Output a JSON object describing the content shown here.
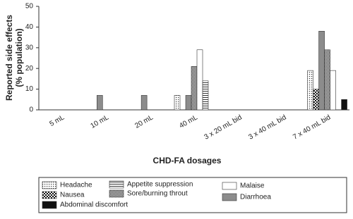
{
  "chart_data": {
    "type": "bar",
    "ylabel": [
      "Reported side effects",
      "(% population)"
    ],
    "xlabel": "CHD-FA dosages",
    "categories": [
      "5 mL",
      "10 mL",
      "20 mL",
      "40 mL",
      "3 x 20 mL bid",
      "3 x 40 mL bid",
      "7 x 40 mL bid"
    ],
    "series": [
      {
        "name": "Headache",
        "color": "#ffffff",
        "pattern": "dots",
        "values": [
          0,
          0,
          0,
          7,
          0,
          0,
          19
        ]
      },
      {
        "name": "Nausea",
        "color": "#ffffff",
        "pattern": "checks",
        "values": [
          0,
          0,
          0,
          0,
          0,
          0,
          10
        ]
      },
      {
        "name": "Diarrhoea",
        "color": "#8c8c8c",
        "values": [
          0,
          7,
          7,
          7,
          0,
          0,
          38
        ]
      },
      {
        "name": "Sore/burning throut",
        "color": "#ffffff",
        "pattern": "fine",
        "values": [
          0,
          0,
          0,
          21,
          0,
          0,
          29
        ]
      },
      {
        "name": "Malaise",
        "color": "#ffffff",
        "values": [
          0,
          0,
          0,
          29,
          0,
          0,
          19
        ]
      },
      {
        "name": "Appetite suppression",
        "color": "#ffffff",
        "pattern": "hlines",
        "values": [
          0,
          0,
          0,
          14,
          0,
          0,
          0
        ]
      },
      {
        "name": "Abdominal discomfort",
        "color": "#111111",
        "values": [
          0,
          0,
          0,
          0,
          0,
          0,
          5
        ]
      }
    ],
    "ylim": [
      0,
      50
    ],
    "yticks": [
      0,
      10,
      20,
      30,
      40,
      50
    ],
    "grid": false
  }
}
